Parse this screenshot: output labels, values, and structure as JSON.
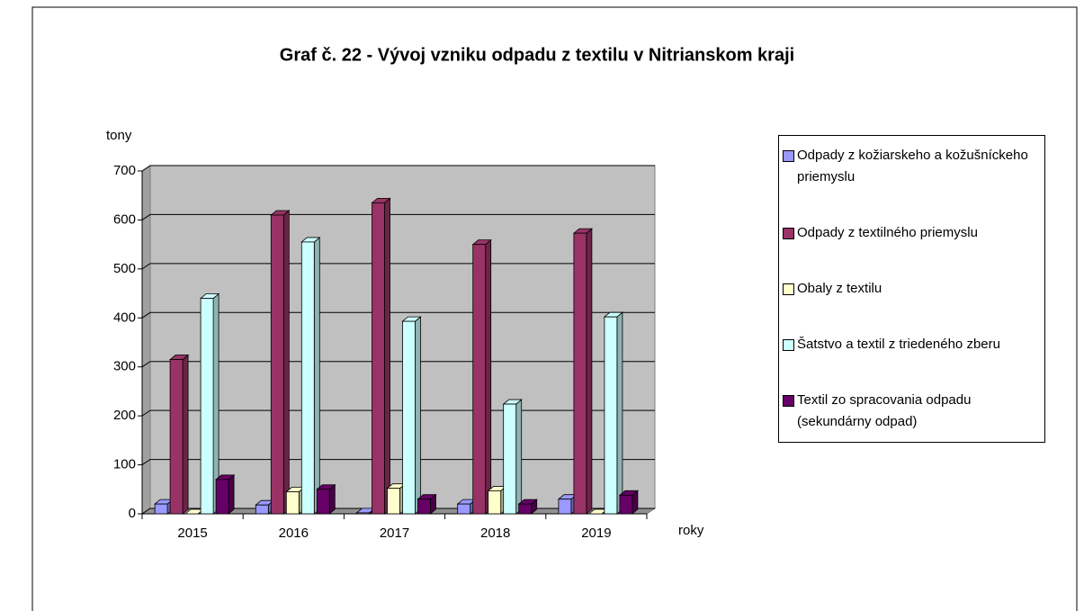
{
  "chart_data": {
    "type": "bar3d",
    "title": "Graf č. 22 - Vývoj vzniku odpadu z textilu v   Nitrianskom kraji",
    "y_label": "tony",
    "x_label": "roky",
    "categories": [
      "2015",
      "2016",
      "2017",
      "2018",
      "2019"
    ],
    "series": [
      {
        "name": "Odpady z kožiarskeho a kožušníckeho priemyslu",
        "color": "#9999ff",
        "values": [
          20,
          18,
          2,
          20,
          30
        ]
      },
      {
        "name": "Odpady z textilného priemyslu",
        "color": "#993366",
        "values": [
          315,
          610,
          635,
          550,
          573
        ]
      },
      {
        "name": "Obaly z textilu",
        "color": "#ffffcc",
        "values": [
          0,
          45,
          52,
          47,
          0
        ]
      },
      {
        "name": "Šatstvo a textil z triedeného zberu",
        "color": "#ccffff",
        "values": [
          440,
          555,
          393,
          224,
          402
        ]
      },
      {
        "name": "Textil zo spracovania odpadu (sekundárny odpad)",
        "color": "#660066",
        "values": [
          70,
          50,
          30,
          20,
          38
        ]
      }
    ],
    "ylim": [
      0,
      700
    ],
    "yticks": [
      0,
      100,
      200,
      300,
      400,
      500,
      600,
      700
    ],
    "grid": true,
    "legend": "right"
  }
}
